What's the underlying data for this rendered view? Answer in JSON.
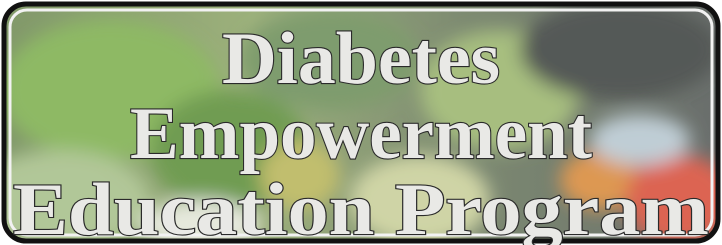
{
  "banner": {
    "lines": [
      "Diabetes",
      "Empowerment",
      "Education Program"
    ]
  }
}
